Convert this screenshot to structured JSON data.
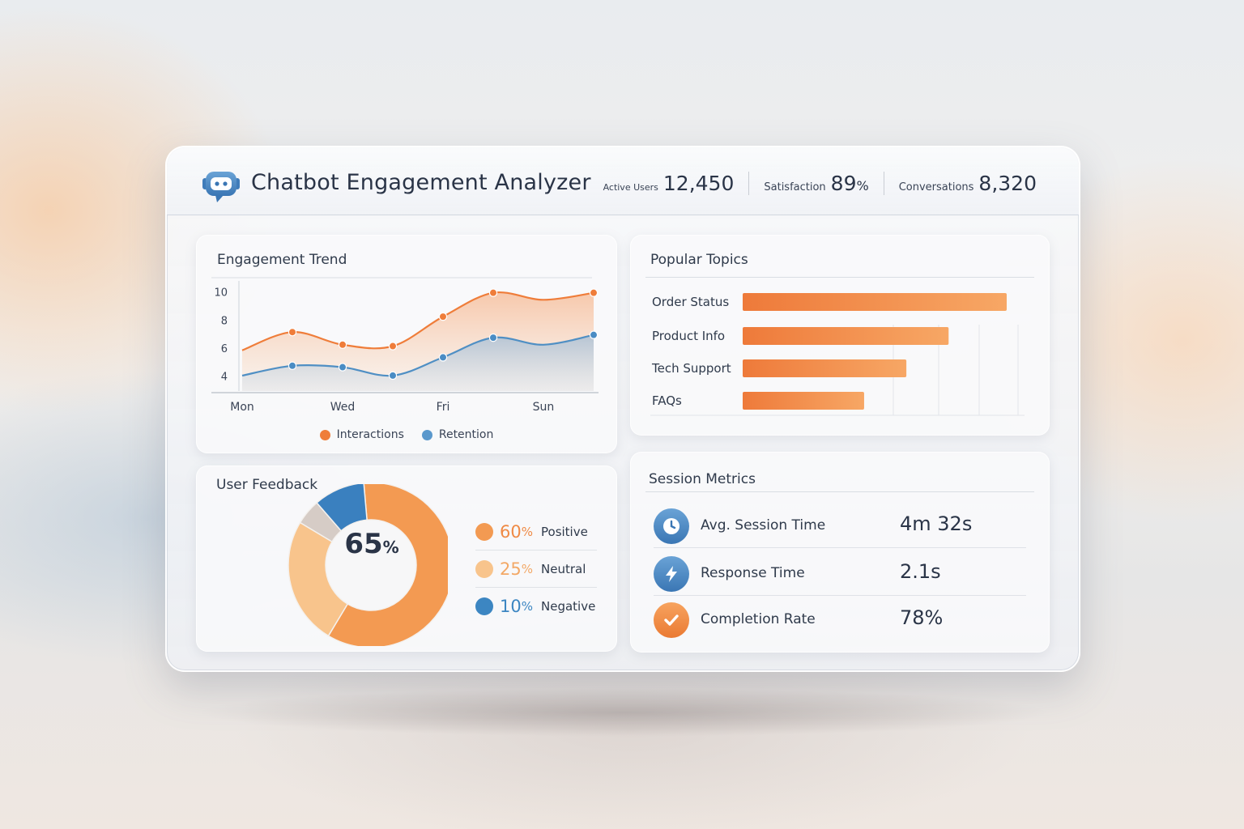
{
  "app": {
    "title": "Chatbot Engagement Analyzer",
    "logo_icon": "chatbot-icon"
  },
  "header_stats": [
    {
      "label": "Active Users",
      "value": "12,450",
      "unit": ""
    },
    {
      "label": "Satisfaction",
      "value": "89",
      "unit": "%"
    },
    {
      "label": "Conversations",
      "value": "8,320",
      "unit": ""
    }
  ],
  "colors": {
    "orange": "#ef8a45",
    "orange_light": "#f7b676",
    "blue": "#4f8fc4",
    "blue_dark": "#2f6fad",
    "gray": "#cfc8c4"
  },
  "engagement": {
    "title": "Engagement Trend",
    "legend": [
      "Interactions",
      "Retention"
    ]
  },
  "topics": {
    "title": "Popular Topics"
  },
  "feedback": {
    "title": "User Feedback",
    "center_value": "65",
    "center_unit": "%",
    "items": [
      {
        "value": "60",
        "unit": "%",
        "label": "Positive",
        "color": "#f39a52"
      },
      {
        "value": "25",
        "unit": "%",
        "label": "Neutral",
        "color": "#f8c48c"
      },
      {
        "value": "10",
        "unit": "%",
        "label": "Negative",
        "color": "#3c86c2"
      }
    ]
  },
  "session": {
    "title": "Session Metrics",
    "metrics": [
      {
        "icon": "clock-icon",
        "label": "Avg. Session Time",
        "value": "4m 32s"
      },
      {
        "icon": "lightning-icon",
        "label": "Response Time",
        "value": "2.1s"
      },
      {
        "icon": "checkmark-icon",
        "label": "Completion Rate",
        "value": "78%"
      }
    ]
  },
  "chart_data": [
    {
      "type": "line",
      "title": "Engagement Trend",
      "x_ticks": [
        "Mon",
        "Wed",
        "Fri",
        "Sun"
      ],
      "y_ticks": [
        4,
        6,
        8,
        10
      ],
      "ylim": [
        3,
        10.5
      ],
      "x": [
        0,
        1,
        2,
        3,
        4,
        5,
        6,
        7
      ],
      "series": [
        {
          "name": "Interactions",
          "values": [
            5.9,
            7.2,
            6.3,
            6.2,
            8.3,
            10.0,
            9.5,
            10.0
          ]
        },
        {
          "name": "Retention",
          "values": [
            4.1,
            4.8,
            4.7,
            4.1,
            5.4,
            6.8,
            6.3,
            7.0
          ]
        }
      ],
      "grid": false,
      "legend": "bottom"
    },
    {
      "type": "bar",
      "orientation": "horizontal",
      "title": "Popular Topics",
      "categories": [
        "Order Status",
        "Product Info",
        "Tech Support",
        "FAQs"
      ],
      "values": [
        100,
        78,
        62,
        46
      ]
    },
    {
      "type": "pie",
      "title": "User Feedback",
      "slices": [
        {
          "label": "Positive",
          "value": 60
        },
        {
          "label": "Neutral",
          "value": 25
        },
        {
          "label": "Negative",
          "value": 10
        },
        {
          "label": "",
          "value": 5
        }
      ]
    }
  ]
}
